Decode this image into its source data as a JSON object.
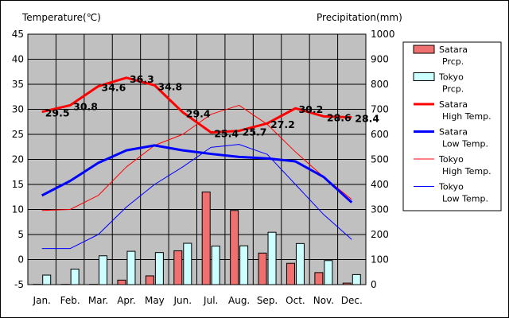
{
  "chart_data": {
    "type": "bar+line",
    "ylabel_left": "Temperature(℃)",
    "ylabel_right": "Precipitation(mm)",
    "categories": [
      "Jan.",
      "Feb.",
      "Mar.",
      "Apr.",
      "May",
      "Jun.",
      "Jul.",
      "Aug.",
      "Sep.",
      "Oct.",
      "Nov.",
      "Dec."
    ],
    "ylim_left": [
      -5,
      45
    ],
    "yticks_left": [
      -5,
      0,
      5,
      10,
      15,
      20,
      25,
      30,
      35,
      40,
      45
    ],
    "ylim_right": [
      0,
      1000
    ],
    "yticks_right": [
      0,
      100,
      200,
      300,
      400,
      500,
      600,
      700,
      800,
      900,
      1000
    ],
    "grid": true,
    "legend_position": "right",
    "bar_series": [
      {
        "name": "Satara\nPrcp.",
        "color": "#f07070",
        "values": [
          1,
          1,
          1,
          18,
          35,
          135,
          370,
          296,
          126,
          85,
          48,
          6
        ]
      },
      {
        "name": "Tokyo\nPrcp.",
        "color": "#ccffff",
        "values": [
          38,
          62,
          115,
          133,
          128,
          165,
          154,
          155,
          209,
          164,
          96,
          40
        ]
      }
    ],
    "line_series": [
      {
        "name": "Satara\nHigh Temp.",
        "color": "#ff0000",
        "width": 3,
        "values": [
          29.5,
          30.8,
          34.6,
          36.3,
          34.8,
          29.4,
          25.4,
          25.7,
          27.2,
          30.2,
          28.6,
          28.4
        ],
        "labels": [
          "29.5",
          "30.8",
          "34.6",
          "36.3",
          "34.8",
          "29.4",
          "25.4",
          "25.7",
          "27.2",
          "30.2",
          "28.6",
          "28.4"
        ]
      },
      {
        "name": "Satara\nLow Temp.",
        "color": "#0000ff",
        "width": 3,
        "values": [
          12.8,
          15.7,
          19.3,
          21.8,
          22.8,
          21.8,
          21.1,
          20.5,
          20.2,
          19.6,
          16.5,
          11.4
        ]
      },
      {
        "name": "Tokyo\nHigh Temp.",
        "color": "#ff0000",
        "width": 1,
        "values": [
          9.8,
          10.0,
          12.8,
          18.5,
          22.8,
          25.0,
          29.0,
          30.8,
          27.0,
          21.5,
          16.5,
          12.0
        ]
      },
      {
        "name": "Tokyo\nLow Temp.",
        "color": "#0000ff",
        "width": 1,
        "values": [
          2.2,
          2.2,
          5.0,
          10.5,
          15.0,
          18.5,
          22.4,
          23.0,
          21.0,
          15.0,
          9.0,
          4.0
        ]
      }
    ]
  }
}
